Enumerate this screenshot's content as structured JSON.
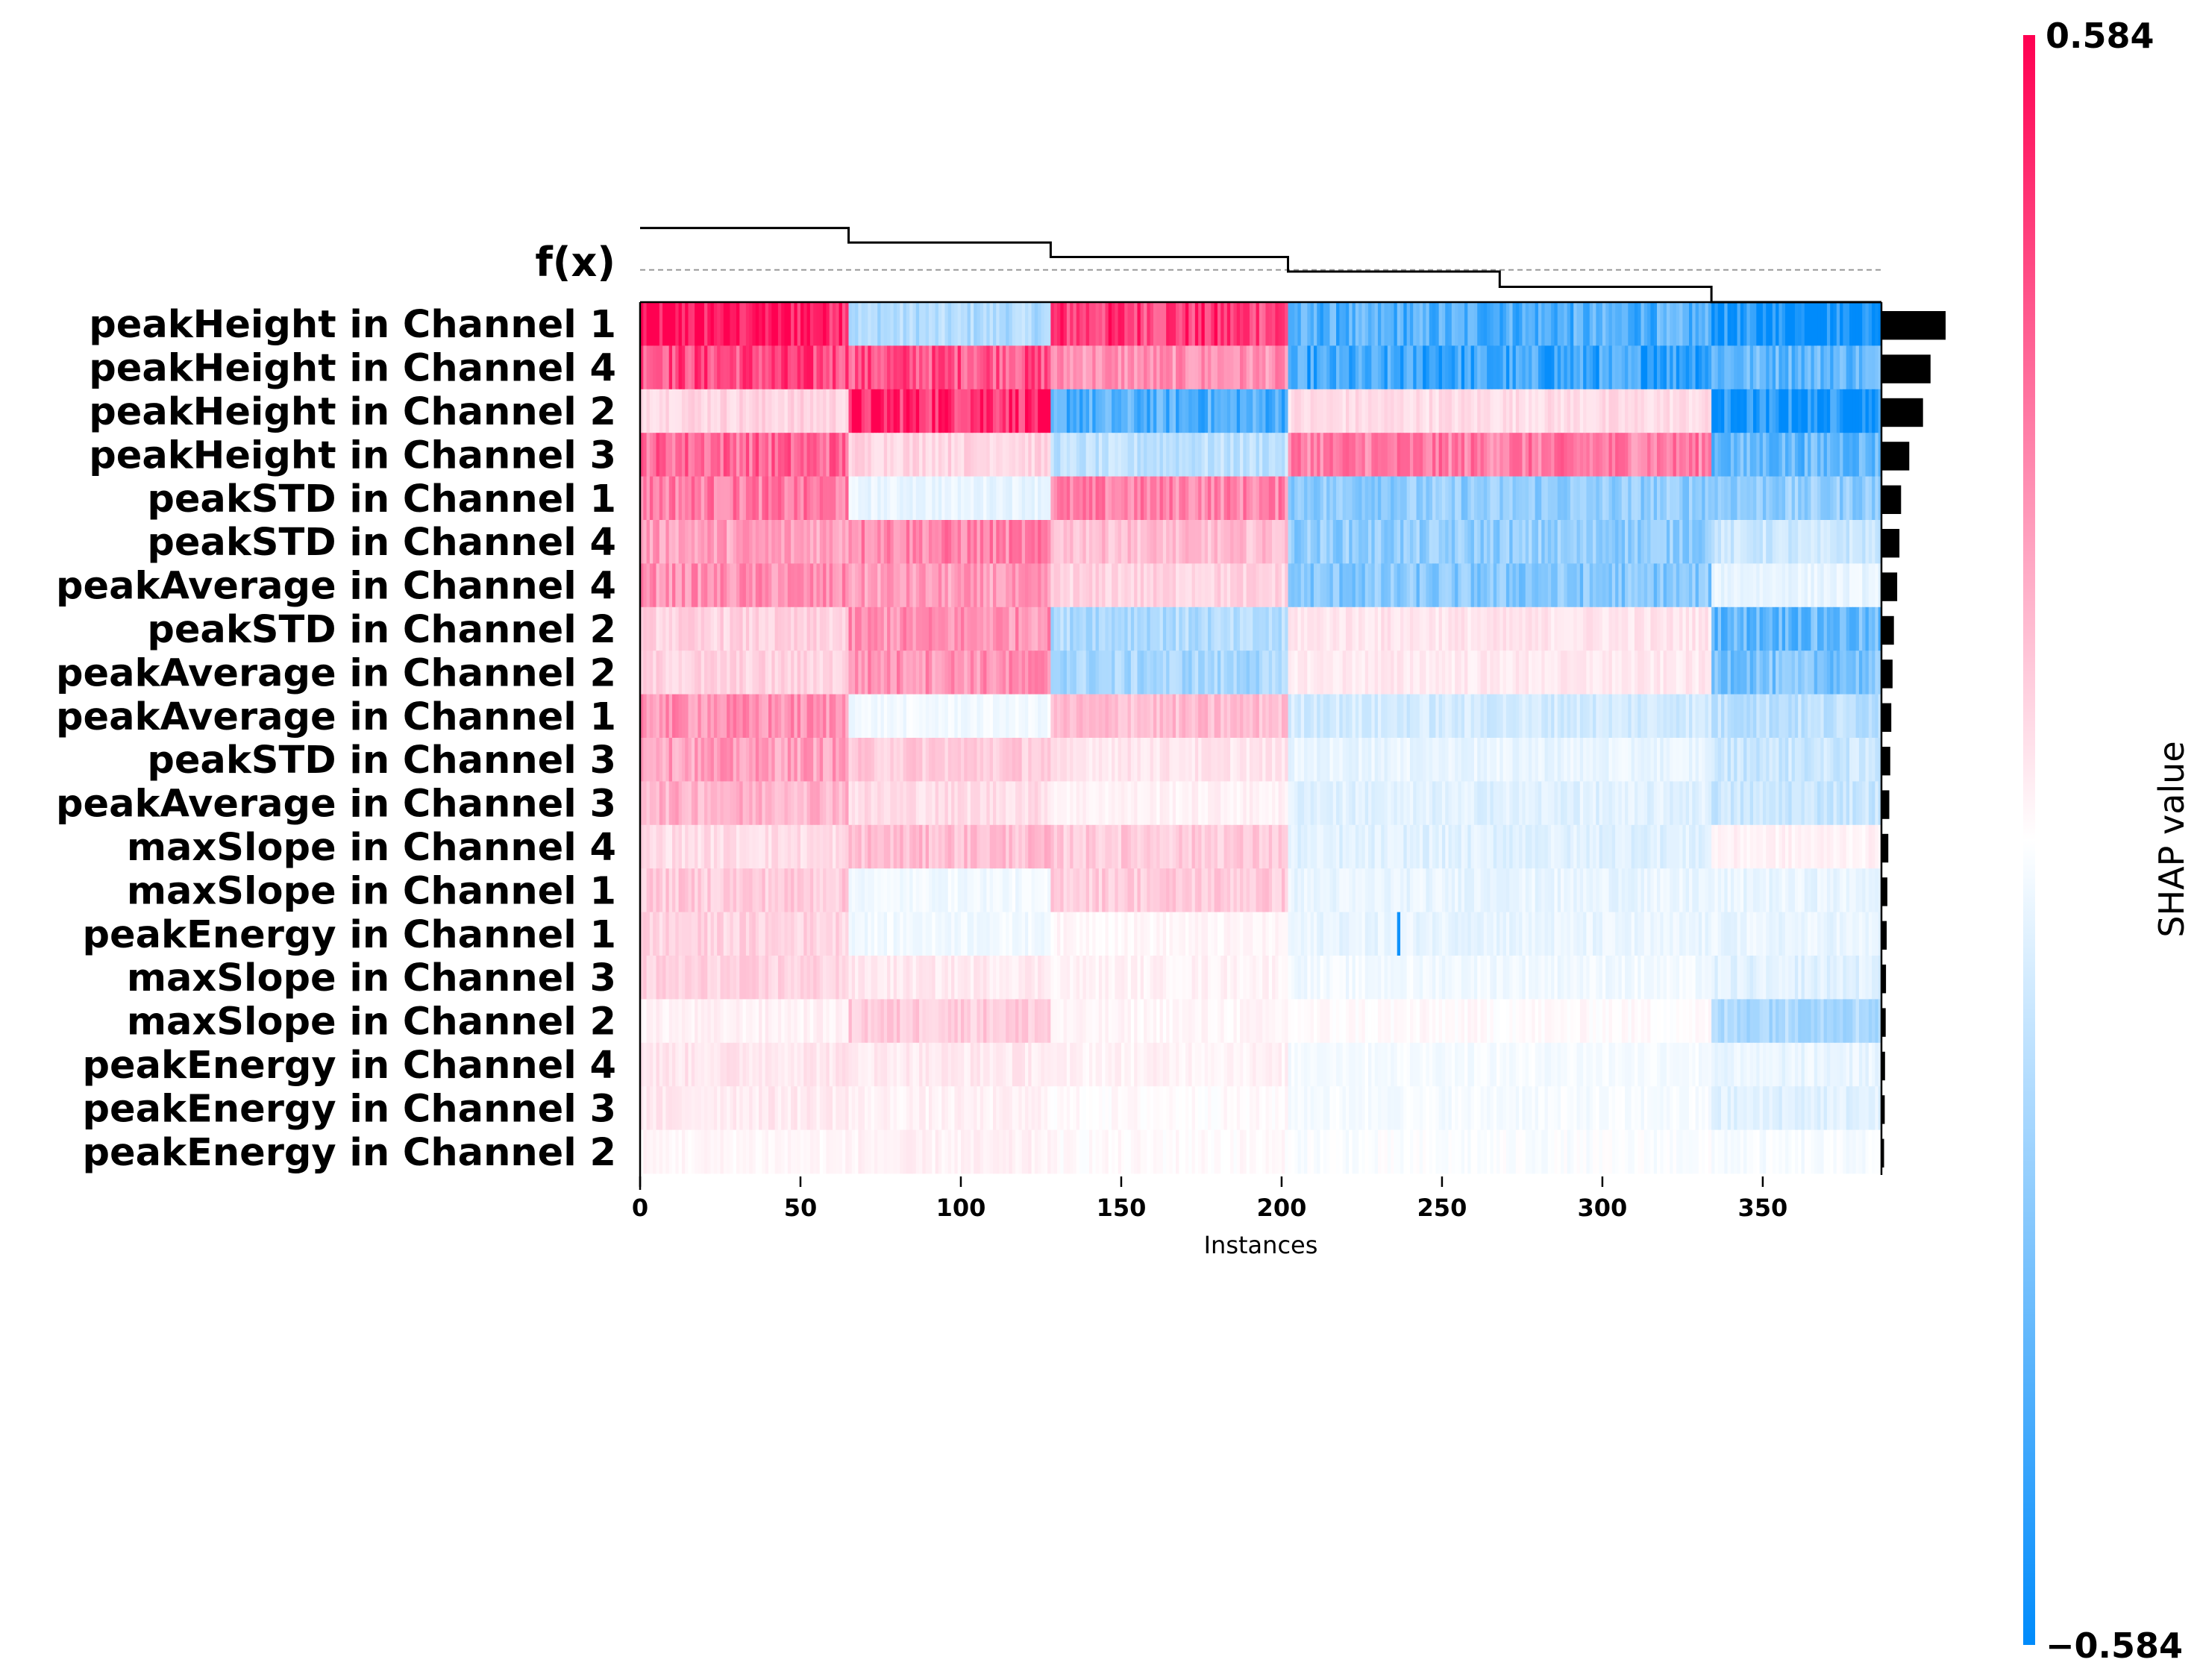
{
  "chart_data": {
    "type": "heatmap",
    "title": "",
    "xlabel": "Instances",
    "ylabel": "",
    "fx_label": "f(x)",
    "x_range": [
      0,
      387
    ],
    "x_ticks": [
      "0",
      "50",
      "100",
      "150",
      "200",
      "250",
      "300",
      "350"
    ],
    "colorbar": {
      "label": "SHAP value",
      "max_label": "0.584",
      "min_label": "−0.584",
      "vmax": 0.584,
      "vmin": -0.584,
      "high_color": "#ff0051",
      "mid_color": "#ffffff",
      "low_color": "#008bfb"
    },
    "features": [
      {
        "name": "peakHeight in Channel 1",
        "importance": 0.196,
        "segments": [
          0.55,
          -0.18,
          0.45,
          -0.4,
          -0.55
        ]
      },
      {
        "name": "peakHeight in Channel 4",
        "importance": 0.15,
        "segments": [
          0.42,
          0.4,
          0.25,
          -0.45,
          -0.35
        ]
      },
      {
        "name": "peakHeight in Channel 2",
        "importance": 0.127,
        "segments": [
          0.1,
          0.5,
          -0.4,
          0.08,
          -0.55
        ]
      },
      {
        "name": "peakHeight in Channel 3",
        "importance": 0.085,
        "segments": [
          0.35,
          0.1,
          -0.15,
          0.3,
          -0.35
        ]
      },
      {
        "name": "peakSTD in Channel 1",
        "importance": 0.06,
        "segments": [
          0.3,
          -0.05,
          0.28,
          -0.25,
          -0.25
        ]
      },
      {
        "name": "peakSTD in Channel 4",
        "importance": 0.055,
        "segments": [
          0.22,
          0.28,
          0.15,
          -0.25,
          -0.12
        ]
      },
      {
        "name": "peakAverage in Channel 4",
        "importance": 0.048,
        "segments": [
          0.25,
          0.22,
          0.1,
          -0.28,
          -0.05
        ]
      },
      {
        "name": "peakSTD in Channel 2",
        "importance": 0.038,
        "segments": [
          0.1,
          0.25,
          -0.18,
          0.06,
          -0.35
        ]
      },
      {
        "name": "peakAverage in Channel 2",
        "importance": 0.034,
        "segments": [
          0.1,
          0.25,
          -0.2,
          0.05,
          -0.3
        ]
      },
      {
        "name": "peakAverage in Channel 1",
        "importance": 0.03,
        "segments": [
          0.25,
          -0.03,
          0.15,
          -0.1,
          -0.15
        ]
      },
      {
        "name": "peakSTD in Channel 3",
        "importance": 0.027,
        "segments": [
          0.22,
          0.12,
          0.06,
          -0.05,
          -0.12
        ]
      },
      {
        "name": "peakAverage in Channel 3",
        "importance": 0.024,
        "segments": [
          0.18,
          0.08,
          0.03,
          -0.07,
          -0.12
        ]
      },
      {
        "name": "maxSlope in Channel 4",
        "importance": 0.021,
        "segments": [
          0.08,
          0.15,
          0.12,
          -0.07,
          0.03
        ]
      },
      {
        "name": "maxSlope in Channel 1",
        "importance": 0.018,
        "segments": [
          0.12,
          -0.03,
          0.12,
          -0.05,
          -0.05
        ]
      },
      {
        "name": "peakEnergy in Channel 1",
        "importance": 0.016,
        "segments": [
          0.1,
          -0.03,
          0.02,
          -0.05,
          -0.05
        ]
      },
      {
        "name": "maxSlope in Channel 3",
        "importance": 0.014,
        "segments": [
          0.1,
          0.05,
          0.03,
          -0.03,
          -0.07
        ]
      },
      {
        "name": "maxSlope in Channel 2",
        "importance": 0.013,
        "segments": [
          0.03,
          0.12,
          0.02,
          0.01,
          -0.18
        ]
      },
      {
        "name": "peakEnergy in Channel 4",
        "importance": 0.011,
        "segments": [
          0.06,
          0.05,
          0.03,
          -0.02,
          -0.05
        ]
      },
      {
        "name": "peakEnergy in Channel 3",
        "importance": 0.01,
        "segments": [
          0.05,
          0.03,
          0.01,
          -0.02,
          -0.07
        ]
      },
      {
        "name": "peakEnergy in Channel 2",
        "importance": 0.008,
        "segments": [
          0.02,
          0.03,
          0.01,
          -0.01,
          -0.02
        ]
      }
    ],
    "instance_groups": [
      {
        "start": 0,
        "end": 65,
        "fx": 0.92
      },
      {
        "start": 65,
        "end": 128,
        "fx": 0.74
      },
      {
        "start": 128,
        "end": 202,
        "fx": 0.56
      },
      {
        "start": 202,
        "end": 268,
        "fx": 0.38
      },
      {
        "start": 268,
        "end": 334,
        "fx": 0.19
      },
      {
        "start": 334,
        "end": 387,
        "fx": 0.0
      }
    ],
    "fx_baseline": 0.4,
    "grid": false,
    "legend": "colorbar-right"
  }
}
